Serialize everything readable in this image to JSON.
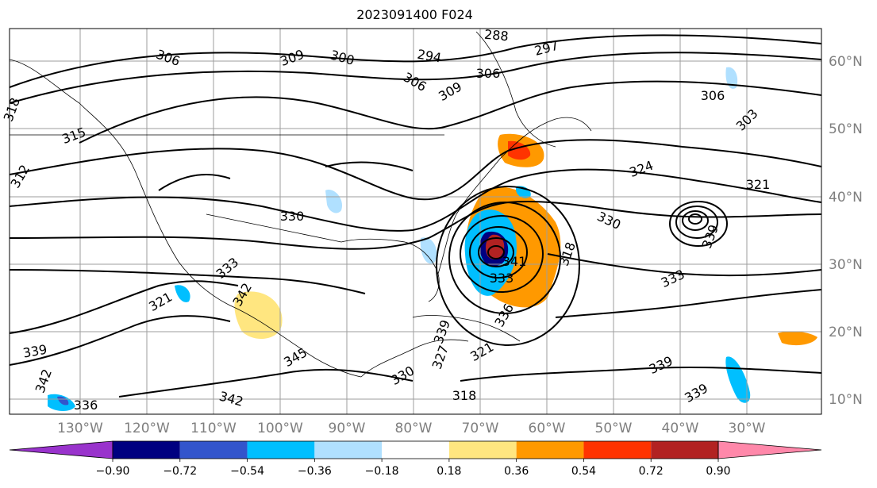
{
  "title": "2023091400 F024",
  "map": {
    "lat_labels": [
      "60°N",
      "50°N",
      "40°N",
      "30°N",
      "20°N",
      "10°N"
    ],
    "lon_labels": [
      "130°W",
      "120°W",
      "110°W",
      "100°W",
      "90°W",
      "80°W",
      "70°W",
      "60°W",
      "50°W",
      "40°W",
      "30°W"
    ],
    "contour_labels": [
      {
        "text": "309"
      },
      {
        "text": "300"
      },
      {
        "text": "294"
      },
      {
        "text": "288"
      },
      {
        "text": "297"
      },
      {
        "text": "306"
      },
      {
        "text": "306"
      },
      {
        "text": "309"
      },
      {
        "text": "306"
      },
      {
        "text": "306"
      },
      {
        "text": "303"
      },
      {
        "text": "315"
      },
      {
        "text": "312"
      },
      {
        "text": "318"
      },
      {
        "text": "324"
      },
      {
        "text": "321"
      },
      {
        "text": "330"
      },
      {
        "text": "330"
      },
      {
        "text": "339"
      },
      {
        "text": "333"
      },
      {
        "text": "333"
      },
      {
        "text": "341"
      },
      {
        "text": "318"
      },
      {
        "text": "321"
      },
      {
        "text": "342"
      },
      {
        "text": "339"
      },
      {
        "text": "342"
      },
      {
        "text": "345"
      },
      {
        "text": "339"
      },
      {
        "text": "339"
      },
      {
        "text": "342"
      },
      {
        "text": "336"
      },
      {
        "text": "330"
      },
      {
        "text": "327"
      },
      {
        "text": "321"
      },
      {
        "text": "318"
      },
      {
        "text": "339"
      },
      {
        "text": "336"
      },
      {
        "text": "333"
      }
    ]
  },
  "colorbar": {
    "tick_labels": [
      "−0.90",
      "−0.72",
      "−0.54",
      "−0.36",
      "−0.18",
      "0.18",
      "0.36",
      "0.54",
      "0.72",
      "0.90"
    ],
    "colors": [
      "#9933cc",
      "#000080",
      "#3355cc",
      "#00bfff",
      "#b0e0ff",
      "#ffffff",
      "#ffe680",
      "#ff9900",
      "#ff3300",
      "#b22222",
      "#ff88aa"
    ]
  }
}
